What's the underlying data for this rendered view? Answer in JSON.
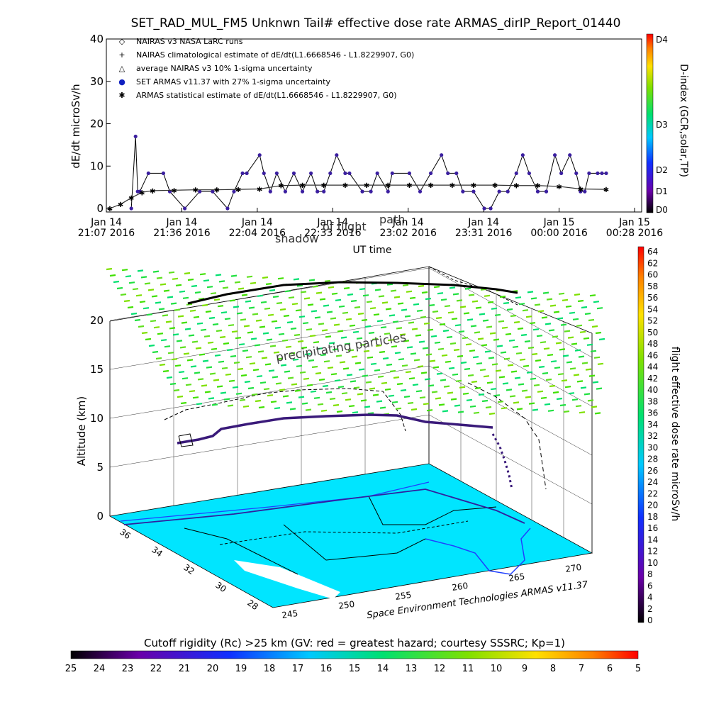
{
  "title": "SET_RAD_MUL_FM5 Unknwn Tail#  effective dose rate ARMAS_dirIP_Report_01440",
  "top_chart": {
    "ylabel": "dE/dt microSv/h",
    "xlabel": "UT time",
    "ylim": [
      0,
      40
    ],
    "y_ticks": [
      "0",
      "10",
      "20",
      "30",
      "40"
    ],
    "x_ticks": [
      {
        "top": "Jan 14",
        "bottom": "21:07 2016"
      },
      {
        "top": "Jan 14",
        "bottom": "21:36 2016"
      },
      {
        "top": "Jan 14",
        "bottom": "22:04 2016"
      },
      {
        "top": "Jan 14",
        "bottom": "22:33 2016"
      },
      {
        "top": "Jan 14",
        "bottom": "23:02 2016"
      },
      {
        "top": "Jan 14",
        "bottom": "23:31 2016"
      },
      {
        "top": "Jan 15",
        "bottom": "00:00 2016"
      },
      {
        "top": "Jan 15",
        "bottom": "00:28 2016"
      }
    ],
    "legend": [
      {
        "symbol": "◇",
        "text": "NAIRAS v3 NASA LaRC runs"
      },
      {
        "symbol": "+",
        "text": "NAIRAS climatological estimate of dE/dt(L1.6668546 - L1.8229907, G0)"
      },
      {
        "symbol": "△",
        "text": "average NAIRAS v3 10% 1-sigma uncertainty"
      },
      {
        "symbol": "●",
        "text": "SET ARMAS v11.37 with 27% 1-sigma uncertainty"
      },
      {
        "symbol": "✱",
        "text": "ARMAS statistical estimate of dE/dt(L1.6668546 - L1.8229907, G0)"
      }
    ],
    "dindex": {
      "title": "D-index (GCR,solar,TP)",
      "labels": [
        "D4",
        "D3",
        "D2",
        "D1",
        "D0"
      ]
    }
  },
  "chart_data": [
    {
      "type": "line",
      "title": "SET_RAD_MUL_FM5 Unknwn Tail#  effective dose rate ARMAS_dirIP_Report_01440",
      "xlabel": "UT time",
      "ylabel": "dE/dt microSv/h",
      "ylim": [
        0,
        40
      ],
      "x_unit": "minutes since Jan 14 21:07",
      "series": [
        {
          "name": "SET ARMAS v11.37 with 27% 1-sigma uncertainty",
          "color": "#3b1fa0",
          "x": [
            10,
            12,
            13,
            14,
            18,
            25,
            28,
            35,
            42,
            48,
            55,
            58,
            62,
            64,
            70,
            72,
            75,
            78,
            82,
            86,
            90,
            94,
            97,
            100,
            103,
            106,
            110,
            112,
            118,
            122,
            125,
            130,
            132,
            140,
            145,
            150,
            155,
            158,
            162,
            165,
            170,
            175,
            178,
            182,
            186,
            190,
            193,
            196,
            200,
            204,
            208,
            211,
            215,
            218,
            220,
            222,
            224,
            228,
            230,
            232
          ],
          "y": [
            0,
            17,
            4,
            4,
            8.3,
            8.3,
            4,
            0,
            4,
            4,
            0,
            4,
            8.3,
            8.3,
            12.6,
            8.3,
            4,
            8.3,
            4,
            8.3,
            4,
            8.3,
            4,
            4,
            8.3,
            12.6,
            8.3,
            8.3,
            4,
            4,
            8.3,
            4,
            8.3,
            8.3,
            4,
            8.3,
            12.6,
            8.3,
            8.3,
            4,
            4,
            0,
            0,
            4,
            4,
            8.3,
            12.6,
            8.3,
            4,
            4,
            12.6,
            8.3,
            12.6,
            8.3,
            4,
            4,
            8.3,
            8.3,
            8.3,
            8.3
          ]
        },
        {
          "name": "NAIRAS climatological estimate of dE/dt(L1.6668546 - L1.8229907, G0)",
          "color": "#000000",
          "x": [
            0,
            5,
            10,
            15,
            20,
            30,
            40,
            50,
            60,
            70,
            80,
            90,
            100,
            110,
            120,
            130,
            140,
            150,
            160,
            170,
            180,
            190,
            200,
            210,
            220,
            232
          ],
          "y": [
            0,
            1,
            2.5,
            3.8,
            4.2,
            4.3,
            4.4,
            4.4,
            4.5,
            4.6,
            5.4,
            5.5,
            5.5,
            5.5,
            5.5,
            5.5,
            5.5,
            5.5,
            5.5,
            5.5,
            5.5,
            5.4,
            5.4,
            5.2,
            4.6,
            4.5
          ]
        }
      ]
    },
    {
      "type": "scatter",
      "title": "",
      "zlabel": "Altitude (km)",
      "z_ticks": [
        "0",
        "5",
        "10",
        "15",
        "20"
      ],
      "lat_ticks": [
        "36",
        "34",
        "32",
        "30",
        "28"
      ],
      "lon_ticks": [
        "245",
        "250",
        "255",
        "260",
        "265",
        "270"
      ],
      "annotations": [
        "precipitating particles",
        "shadow of flight path",
        "Space Environment Technologies ARMAS v11.37"
      ]
    }
  ],
  "bottom_3d": {
    "zlabel": "Altitude (km)",
    "z_ticks": [
      "0",
      "5",
      "10",
      "15",
      "20"
    ],
    "lat_ticks": [
      "36",
      "34",
      "32",
      "30",
      "28"
    ],
    "lon_ticks": [
      "245",
      "250",
      "255",
      "260",
      "265",
      "270"
    ],
    "annotation_particles": "precipitating particles",
    "annotation_shadow_1": "shadow",
    "annotation_shadow_2": "of flight",
    "annotation_shadow_3": "path",
    "credit": "Space Environment Technologies ARMAS v11.37",
    "colorbar": {
      "title": "flight effective dose rate microSv/h",
      "ticks": [
        "64",
        "62",
        "60",
        "58",
        "56",
        "54",
        "52",
        "50",
        "48",
        "46",
        "44",
        "42",
        "40",
        "38",
        "36",
        "34",
        "32",
        "30",
        "28",
        "26",
        "24",
        "22",
        "20",
        "18",
        "16",
        "14",
        "12",
        "10",
        "8",
        "6",
        "4",
        "2",
        "0"
      ]
    }
  },
  "cutoff_bar": {
    "title": "Cutoff rigidity (Rc) >25 km (GV: red = greatest hazard; courtesy SSSRC; Kp=1)",
    "ticks": [
      "25",
      "24",
      "23",
      "22",
      "21",
      "20",
      "19",
      "18",
      "17",
      "16",
      "15",
      "14",
      "13",
      "12",
      "11",
      "10",
      "9",
      "8",
      "7",
      "6",
      "5"
    ]
  }
}
